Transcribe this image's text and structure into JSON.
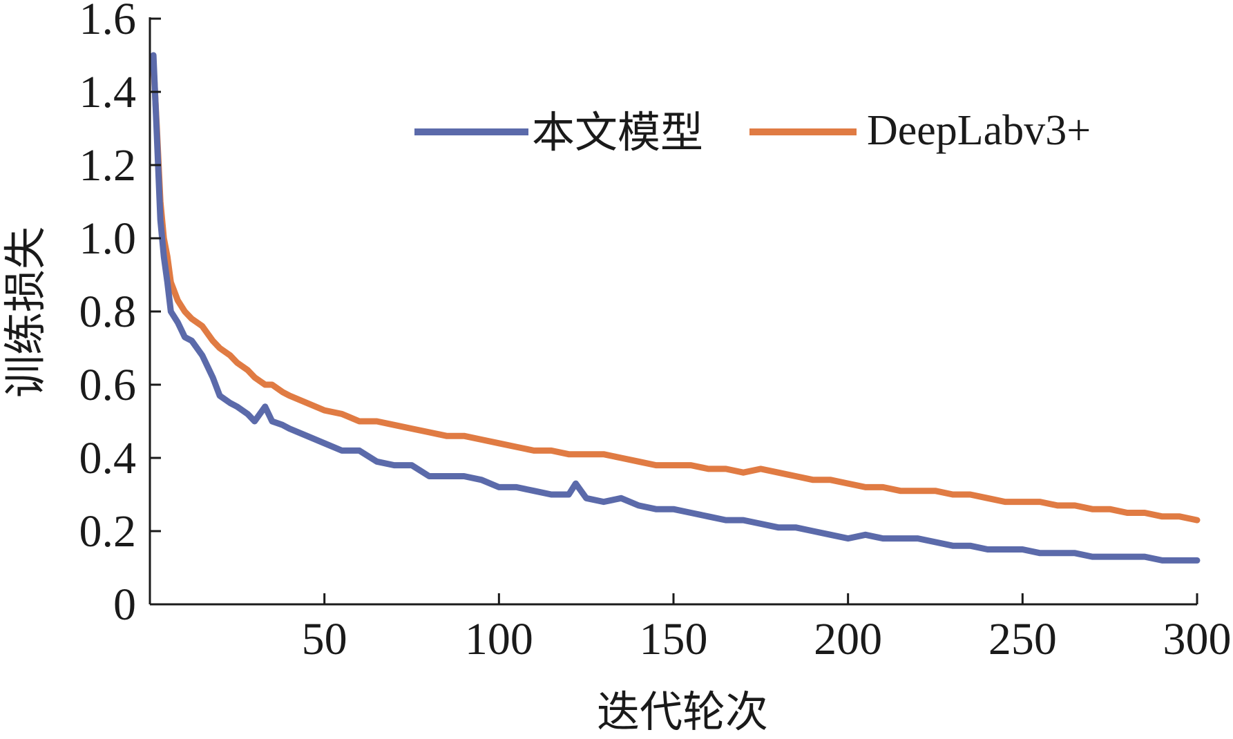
{
  "chart_data": {
    "type": "line",
    "title": "",
    "xlabel": "迭代轮次",
    "ylabel": "训练损失",
    "xlim": [
      0,
      300
    ],
    "ylim": [
      0,
      1.6
    ],
    "xticks": [
      50,
      100,
      150,
      200,
      250,
      300
    ],
    "xtick_labels": [
      "50",
      "100",
      "150",
      "200",
      "250",
      "300"
    ],
    "yticks": [
      0,
      0.2,
      0.4,
      0.6,
      0.8,
      1.0,
      1.2,
      1.4,
      1.6
    ],
    "ytick_labels": [
      "0",
      "0.2",
      "0.4",
      "0.6",
      "0.8",
      "1.0",
      "1.2",
      "1.4",
      "1.6"
    ],
    "grid": false,
    "legend_position": "top-right",
    "series": [
      {
        "name": "本文模型",
        "color": "#5b6aaa",
        "x": [
          1,
          2,
          3,
          4,
          5,
          6,
          8,
          10,
          12,
          15,
          18,
          20,
          23,
          25,
          28,
          30,
          33,
          35,
          38,
          40,
          45,
          50,
          55,
          60,
          65,
          70,
          75,
          80,
          85,
          90,
          95,
          100,
          105,
          110,
          115,
          120,
          122,
          125,
          130,
          135,
          140,
          145,
          150,
          155,
          160,
          165,
          170,
          175,
          180,
          185,
          190,
          195,
          200,
          205,
          210,
          215,
          220,
          225,
          230,
          235,
          240,
          245,
          250,
          255,
          260,
          265,
          270,
          275,
          280,
          285,
          290,
          295,
          300
        ],
        "y": [
          1.5,
          1.28,
          1.05,
          0.95,
          0.88,
          0.8,
          0.77,
          0.73,
          0.72,
          0.68,
          0.62,
          0.57,
          0.55,
          0.54,
          0.52,
          0.5,
          0.54,
          0.5,
          0.49,
          0.48,
          0.46,
          0.44,
          0.42,
          0.42,
          0.39,
          0.38,
          0.38,
          0.35,
          0.35,
          0.35,
          0.34,
          0.32,
          0.32,
          0.31,
          0.3,
          0.3,
          0.33,
          0.29,
          0.28,
          0.29,
          0.27,
          0.26,
          0.26,
          0.25,
          0.24,
          0.23,
          0.23,
          0.22,
          0.21,
          0.21,
          0.2,
          0.19,
          0.18,
          0.19,
          0.18,
          0.18,
          0.18,
          0.17,
          0.16,
          0.16,
          0.15,
          0.15,
          0.15,
          0.14,
          0.14,
          0.14,
          0.13,
          0.13,
          0.13,
          0.13,
          0.12,
          0.12,
          0.12
        ]
      },
      {
        "name": "DeepLabv3+",
        "color": "#e07b43",
        "x": [
          1,
          2,
          3,
          4,
          5,
          6,
          8,
          10,
          12,
          15,
          18,
          20,
          23,
          25,
          28,
          30,
          33,
          35,
          38,
          40,
          45,
          50,
          55,
          60,
          65,
          70,
          75,
          80,
          85,
          90,
          95,
          100,
          105,
          110,
          115,
          120,
          125,
          130,
          135,
          140,
          145,
          150,
          155,
          160,
          165,
          170,
          175,
          180,
          185,
          190,
          195,
          200,
          205,
          210,
          215,
          220,
          225,
          230,
          235,
          240,
          245,
          250,
          255,
          260,
          265,
          270,
          275,
          280,
          285,
          290,
          295,
          300
        ],
        "y": [
          1.48,
          1.3,
          1.1,
          1.0,
          0.95,
          0.88,
          0.83,
          0.8,
          0.78,
          0.76,
          0.72,
          0.7,
          0.68,
          0.66,
          0.64,
          0.62,
          0.6,
          0.6,
          0.58,
          0.57,
          0.55,
          0.53,
          0.52,
          0.5,
          0.5,
          0.49,
          0.48,
          0.47,
          0.46,
          0.46,
          0.45,
          0.44,
          0.43,
          0.42,
          0.42,
          0.41,
          0.41,
          0.41,
          0.4,
          0.39,
          0.38,
          0.38,
          0.38,
          0.37,
          0.37,
          0.36,
          0.37,
          0.36,
          0.35,
          0.34,
          0.34,
          0.33,
          0.32,
          0.32,
          0.31,
          0.31,
          0.31,
          0.3,
          0.3,
          0.29,
          0.28,
          0.28,
          0.28,
          0.27,
          0.27,
          0.26,
          0.26,
          0.25,
          0.25,
          0.24,
          0.24,
          0.23
        ]
      }
    ]
  }
}
